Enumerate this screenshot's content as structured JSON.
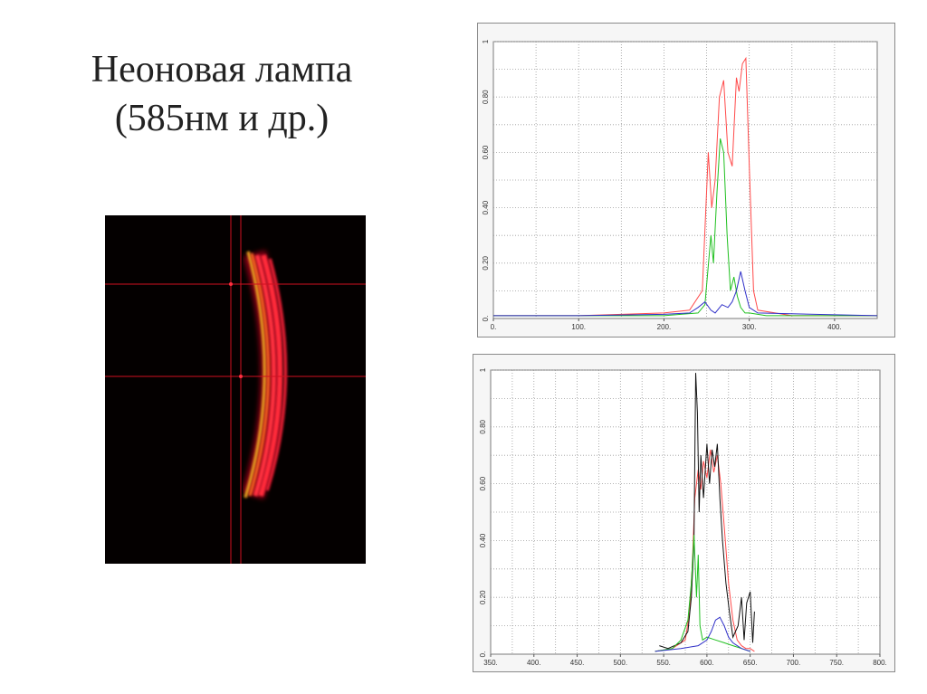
{
  "title": {
    "line1": "Неоновая лампа",
    "line2": "(585нм и др.)"
  },
  "colors": {
    "red": "#ff4a4a",
    "green": "#20c020",
    "blue": "#3030c8",
    "black": "#111111",
    "grid": "#9a9a9a"
  },
  "chart_data": [
    {
      "type": "line",
      "xlim": [
        0,
        450
      ],
      "ylim": [
        0,
        1
      ],
      "x_ticks": [
        "0.",
        "100.",
        "200.",
        "300.",
        "400."
      ],
      "x_tick_values": [
        0,
        100,
        200,
        300,
        400
      ],
      "y_ticks": [
        "0.",
        "0.20",
        "0.40",
        "0.60",
        "0.80",
        "1"
      ],
      "y_tick_values": [
        0,
        0.2,
        0.4,
        0.6,
        0.8,
        1
      ],
      "grid": true,
      "series": [
        {
          "color": "#ff4a4a",
          "x": [
            0,
            100,
            200,
            230,
            245,
            252,
            256,
            260,
            265,
            270,
            275,
            280,
            285,
            288,
            292,
            296,
            300,
            305,
            310,
            350,
            400,
            450
          ],
          "y": [
            0.01,
            0.01,
            0.02,
            0.03,
            0.1,
            0.6,
            0.4,
            0.5,
            0.8,
            0.86,
            0.6,
            0.55,
            0.87,
            0.82,
            0.92,
            0.94,
            0.55,
            0.1,
            0.03,
            0.01,
            0.01,
            0.01
          ]
        },
        {
          "color": "#20c020",
          "x": [
            0,
            100,
            200,
            240,
            248,
            255,
            258,
            262,
            266,
            270,
            274,
            278,
            282,
            286,
            290,
            295,
            300,
            320,
            450
          ],
          "y": [
            0.01,
            0.01,
            0.01,
            0.02,
            0.05,
            0.3,
            0.2,
            0.45,
            0.65,
            0.6,
            0.3,
            0.1,
            0.15,
            0.08,
            0.04,
            0.02,
            0.02,
            0.01,
            0.01
          ]
        },
        {
          "color": "#3030c8",
          "x": [
            0,
            100,
            200,
            230,
            240,
            248,
            255,
            260,
            268,
            275,
            280,
            285,
            290,
            295,
            300,
            310,
            450
          ],
          "y": [
            0.01,
            0.01,
            0.015,
            0.02,
            0.04,
            0.06,
            0.03,
            0.02,
            0.05,
            0.04,
            0.06,
            0.1,
            0.17,
            0.1,
            0.04,
            0.02,
            0.01
          ]
        }
      ]
    },
    {
      "type": "line",
      "xlim": [
        350,
        800
      ],
      "ylim": [
        0,
        1
      ],
      "x_ticks": [
        "350.",
        "400.",
        "450.",
        "500.",
        "550.",
        "600.",
        "650.",
        "700.",
        "750.",
        "800."
      ],
      "x_tick_values": [
        350,
        400,
        450,
        500,
        550,
        600,
        650,
        700,
        750,
        800
      ],
      "y_ticks": [
        "0.",
        "0.20",
        "0.40",
        "0.60",
        "0.80",
        "1"
      ],
      "y_tick_values": [
        0,
        0.2,
        0.4,
        0.6,
        0.8,
        1
      ],
      "grid": true,
      "series": [
        {
          "color": "#ff4a4a",
          "x": [
            540,
            560,
            575,
            580,
            583,
            586,
            590,
            593,
            596,
            600,
            604,
            608,
            612,
            616,
            620,
            625,
            630,
            635,
            640,
            645,
            650,
            655
          ],
          "y": [
            0.01,
            0.02,
            0.05,
            0.15,
            0.3,
            0.55,
            0.65,
            0.58,
            0.68,
            0.62,
            0.72,
            0.64,
            0.7,
            0.6,
            0.45,
            0.25,
            0.12,
            0.05,
            0.03,
            0.02,
            0.02,
            0.01
          ]
        },
        {
          "color": "#111111",
          "x": [
            545,
            555,
            570,
            578,
            582,
            585,
            587,
            589,
            591,
            593,
            596,
            600,
            603,
            606,
            609,
            612,
            615,
            618,
            622,
            626,
            630,
            636,
            640,
            643,
            646,
            650,
            653,
            655
          ],
          "y": [
            0.03,
            0.02,
            0.04,
            0.08,
            0.2,
            0.4,
            0.99,
            0.85,
            0.5,
            0.7,
            0.55,
            0.74,
            0.6,
            0.72,
            0.66,
            0.74,
            0.55,
            0.4,
            0.25,
            0.15,
            0.06,
            0.1,
            0.2,
            0.05,
            0.18,
            0.22,
            0.04,
            0.15
          ]
        },
        {
          "color": "#20c020",
          "x": [
            540,
            560,
            570,
            578,
            582,
            585,
            588,
            590,
            592,
            595,
            600,
            610,
            620,
            630,
            640,
            650
          ],
          "y": [
            0.01,
            0.02,
            0.05,
            0.12,
            0.25,
            0.42,
            0.2,
            0.35,
            0.1,
            0.05,
            0.06,
            0.05,
            0.04,
            0.03,
            0.02,
            0.01
          ]
        },
        {
          "color": "#3030c8",
          "x": [
            540,
            570,
            590,
            600,
            605,
            610,
            615,
            620,
            625,
            630,
            635,
            640,
            650
          ],
          "y": [
            0.01,
            0.02,
            0.03,
            0.05,
            0.08,
            0.12,
            0.13,
            0.1,
            0.06,
            0.04,
            0.03,
            0.02,
            0.01
          ]
        }
      ]
    }
  ]
}
